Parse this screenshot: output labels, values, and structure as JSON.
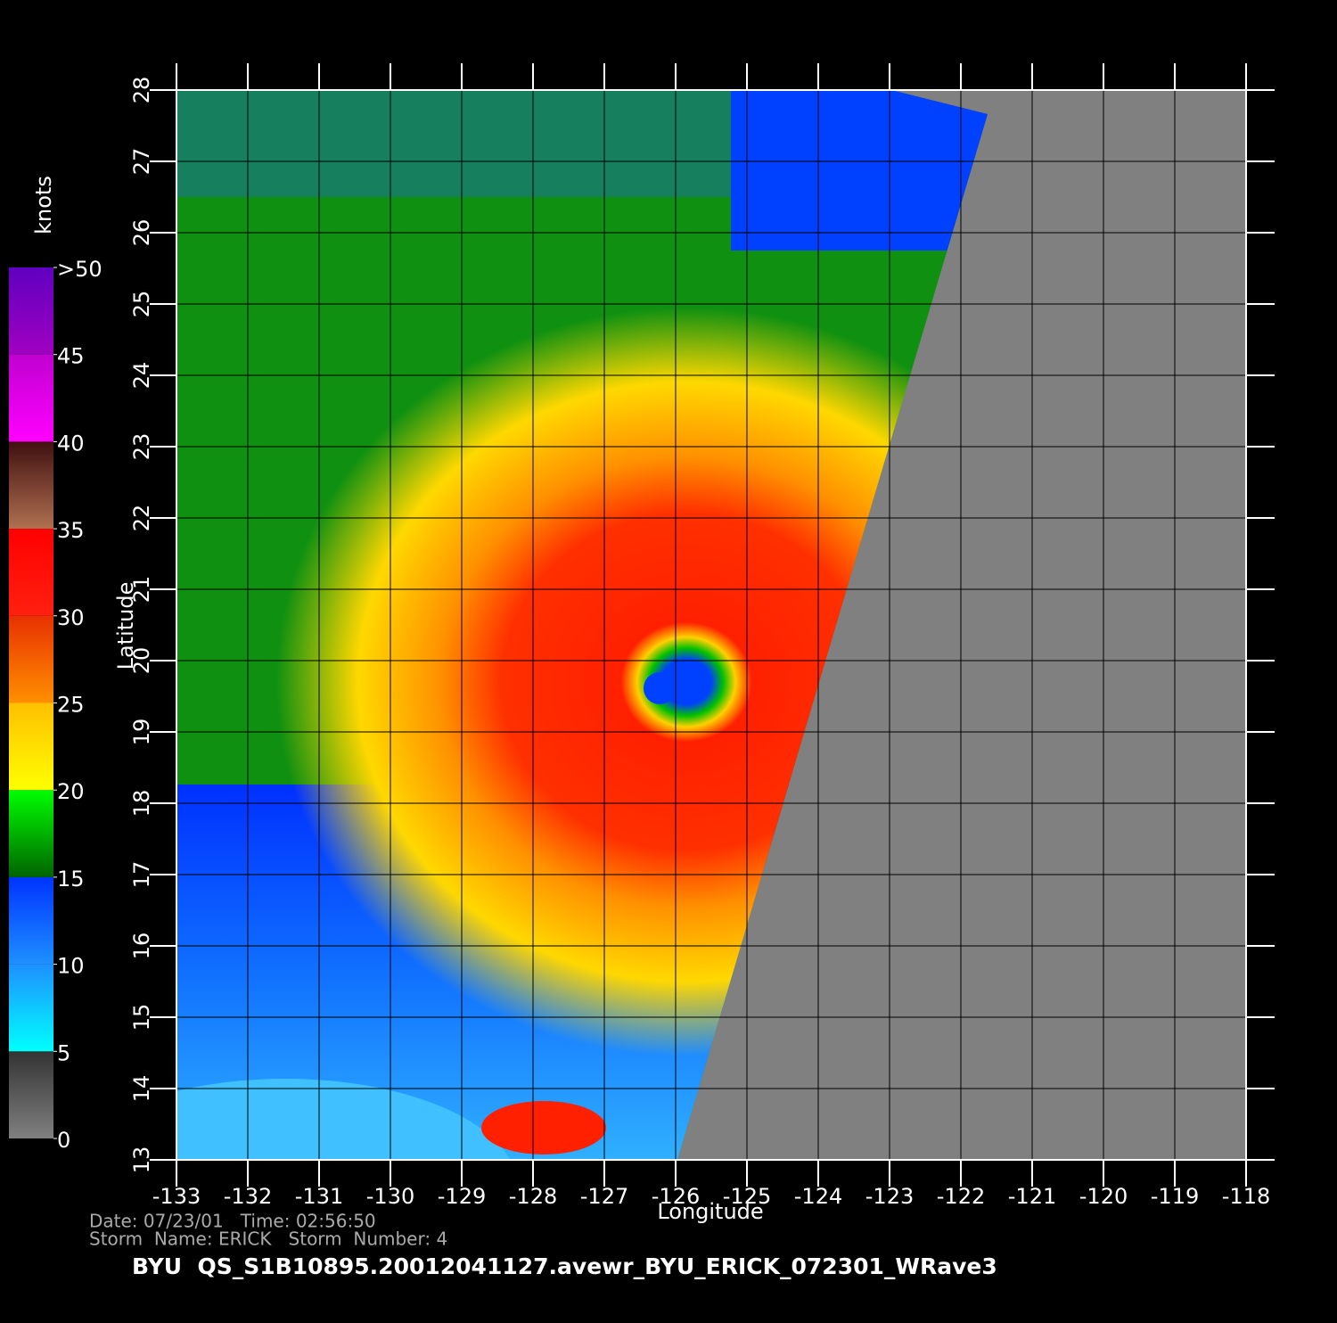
{
  "map": {
    "xlabel": "Longitude",
    "ylabel": "Latitude",
    "xlim": [
      -133,
      -118
    ],
    "ylim": [
      13,
      28
    ],
    "xticks": [
      -133,
      -132,
      -131,
      -130,
      -129,
      -128,
      -127,
      -126,
      -125,
      -124,
      -123,
      -122,
      -121,
      -120,
      -119,
      -118
    ],
    "yticks": [
      13,
      14,
      15,
      16,
      17,
      18,
      19,
      20,
      21,
      22,
      23,
      24,
      25,
      26,
      27,
      28
    ],
    "grid": true,
    "grid_color": "#000000",
    "land_color": "#808080"
  },
  "colorbar": {
    "label": "knots",
    "range": [
      0,
      50
    ],
    "ticks": [
      0,
      5,
      10,
      15,
      20,
      25,
      30,
      35,
      40,
      45,
      {
        "value": 50,
        "label": ">50"
      }
    ],
    "bands": [
      {
        "from": 0,
        "to": 5,
        "colors": [
          "#808080",
          "#333333"
        ]
      },
      {
        "from": 5,
        "to": 10,
        "colors": [
          "#00ffff",
          "#1e90ff"
        ]
      },
      {
        "from": 10,
        "to": 15,
        "colors": [
          "#1e90ff",
          "#0033ff"
        ]
      },
      {
        "from": 15,
        "to": 20,
        "colors": [
          "#006400",
          "#00ff00"
        ]
      },
      {
        "from": 20,
        "to": 25,
        "colors": [
          "#ffff00",
          "#ffc000"
        ]
      },
      {
        "from": 25,
        "to": 30,
        "colors": [
          "#ff9000",
          "#e83000"
        ]
      },
      {
        "from": 30,
        "to": 35,
        "colors": [
          "#ff2010",
          "#ff0000"
        ]
      },
      {
        "from": 35,
        "to": 40,
        "colors": [
          "#b07050",
          "#401010"
        ]
      },
      {
        "from": 40,
        "to": 45,
        "colors": [
          "#ff00ff",
          "#c000d0"
        ]
      },
      {
        "from": 45,
        "to": 50,
        "colors": [
          "#a000c0",
          "#6000c0"
        ]
      }
    ]
  },
  "footer": {
    "line1": "Date: 07/23/01   Time: 02:56:50",
    "line2": "Storm  Name: ERICK   Storm  Number: 4",
    "title": "BYU  QS_S1B10895.20012041127.avewr_BYU_ERICK_072301_WRave3"
  }
}
